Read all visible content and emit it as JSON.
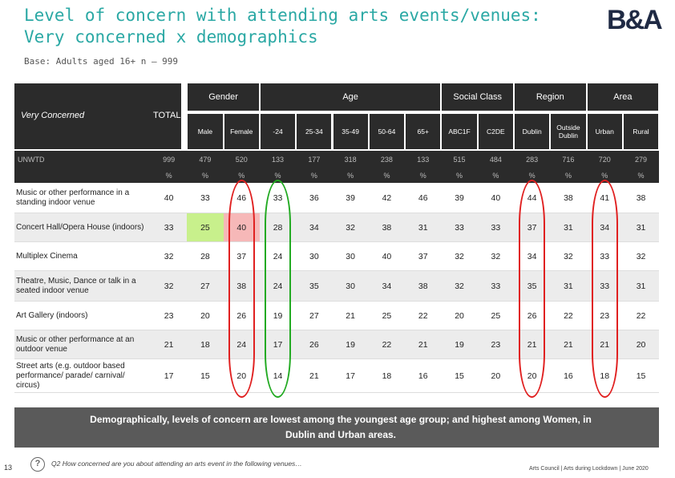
{
  "title_line1": "Level of concern with attending arts events/venues:",
  "title_line2": "Very concerned x demographics",
  "logo": "B&A",
  "base": "Base: Adults aged 16+ n – 999",
  "corner_label": "Very Concerned",
  "total_label": "TOTAL",
  "groups": [
    "Gender",
    "Age",
    "Social Class",
    "Region",
    "Area"
  ],
  "columns": [
    "Male",
    "Female",
    "-24",
    "25-34",
    "35-49",
    "50-64",
    "65+",
    "ABC1F",
    "C2DE",
    "Dublin",
    "Outside Dublin",
    "Urban",
    "Rural"
  ],
  "unwtd_label": "UNWTD",
  "unwtd": [
    "999",
    "479",
    "520",
    "133",
    "177",
    "318",
    "238",
    "133",
    "515",
    "484",
    "283",
    "716",
    "720",
    "279"
  ],
  "pct": "%",
  "rows": [
    {
      "label": "Music or other performance in a standing indoor venue",
      "values": [
        "40",
        "33",
        "46",
        "33",
        "36",
        "39",
        "42",
        "46",
        "39",
        "40",
        "44",
        "38",
        "41",
        "38"
      ]
    },
    {
      "label": "Concert Hall/Opera House (indoors)",
      "values": [
        "33",
        "25",
        "40",
        "28",
        "34",
        "32",
        "38",
        "31",
        "33",
        "33",
        "37",
        "31",
        "34",
        "31"
      ]
    },
    {
      "label": "Multiplex Cinema",
      "values": [
        "32",
        "28",
        "37",
        "24",
        "30",
        "30",
        "40",
        "37",
        "32",
        "32",
        "34",
        "32",
        "33",
        "32"
      ]
    },
    {
      "label": "Theatre, Music, Dance or talk in a seated indoor venue",
      "values": [
        "32",
        "27",
        "38",
        "24",
        "35",
        "30",
        "34",
        "38",
        "32",
        "33",
        "35",
        "31",
        "33",
        "31"
      ]
    },
    {
      "label": "Art Gallery (indoors)",
      "values": [
        "23",
        "20",
        "26",
        "19",
        "27",
        "21",
        "25",
        "22",
        "20",
        "25",
        "26",
        "22",
        "23",
        "22"
      ]
    },
    {
      "label": "Music or other performance at an outdoor venue",
      "values": [
        "21",
        "18",
        "24",
        "17",
        "26",
        "19",
        "22",
        "21",
        "19",
        "23",
        "21",
        "21",
        "21",
        "20"
      ]
    },
    {
      "label": "Street arts (e.g. outdoor based performance/ parade/ carnival/ circus)",
      "values": [
        "17",
        "15",
        "20",
        "14",
        "21",
        "17",
        "18",
        "16",
        "15",
        "20",
        "20",
        "16",
        "18",
        "15"
      ]
    }
  ],
  "highlight_colors": {
    "green": "#c8f08c",
    "red": "#f6b8b8",
    "oval_red": "#e02020",
    "oval_green": "#22aa22"
  },
  "banner": "Demographically, levels of concern are lowest among the youngest age group; and highest among Women, in Dublin and Urban areas.",
  "page_number": "13",
  "question": "Q2 How concerned are you about attending an arts event in the following venues…",
  "footer": "Arts Council | Arts during Lockdown | June 2020"
}
